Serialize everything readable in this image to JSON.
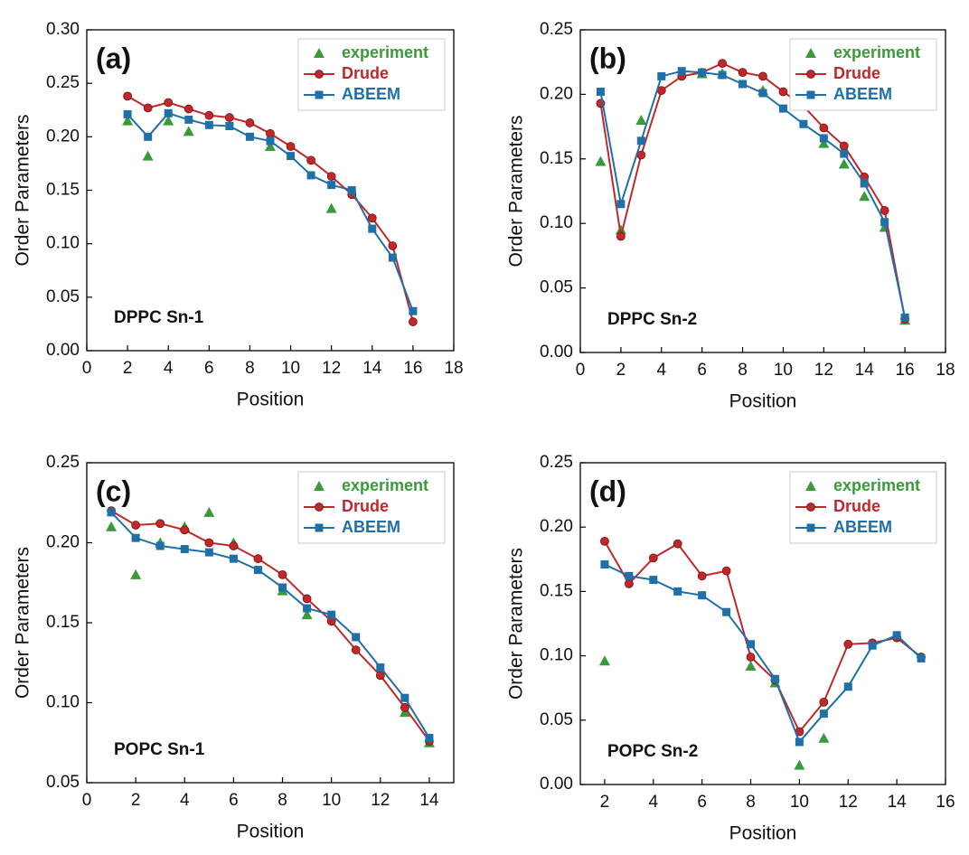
{
  "chart_data": [
    {
      "type": "line",
      "label": "(a)",
      "annotation": "DPPC Sn-1",
      "xlabel": "Position",
      "ylabel": "Order Parameters",
      "xlim": [
        0,
        18
      ],
      "xticks": [
        0,
        2,
        4,
        6,
        8,
        10,
        12,
        14,
        16,
        18
      ],
      "ylim": [
        0,
        0.3
      ],
      "yticks": [
        {
          "value": 0,
          "label": "0.00"
        },
        0.05,
        {
          "value": 0.1,
          "label": "0.10"
        },
        0.15,
        {
          "value": 0.2,
          "label": "0.20"
        },
        0.25,
        {
          "value": 0.3,
          "label": "0.30"
        }
      ],
      "legend": "upper right",
      "series": [
        {
          "name": "experiment",
          "color": "#3a9a3a",
          "marker": "triangle",
          "line": false,
          "x": [
            2,
            3,
            4,
            5,
            9,
            12
          ],
          "values": [
            0.215,
            0.182,
            0.215,
            0.205,
            0.191,
            0.133
          ]
        },
        {
          "name": "Drude",
          "color": "#c0282a",
          "marker": "circle",
          "line": true,
          "x": [
            2,
            3,
            4,
            5,
            6,
            7,
            8,
            9,
            10,
            11,
            12,
            13,
            14,
            15,
            16
          ],
          "values": [
            0.238,
            0.227,
            0.232,
            0.226,
            0.22,
            0.218,
            0.213,
            0.203,
            0.191,
            0.178,
            0.163,
            0.146,
            0.124,
            0.098,
            0.027
          ]
        },
        {
          "name": "ABEEM",
          "color": "#1f6fa8",
          "marker": "square",
          "line": true,
          "x": [
            2,
            3,
            4,
            5,
            6,
            7,
            8,
            9,
            10,
            11,
            12,
            13,
            14,
            15,
            16
          ],
          "values": [
            0.221,
            0.2,
            0.222,
            0.216,
            0.211,
            0.21,
            0.2,
            0.196,
            0.182,
            0.164,
            0.155,
            0.15,
            0.114,
            0.087,
            0.037
          ]
        }
      ]
    },
    {
      "type": "line",
      "label": "(b)",
      "annotation": "DPPC Sn-2",
      "xlabel": "Position",
      "ylabel": "Order Parameters",
      "xlim": [
        0,
        18
      ],
      "xticks": [
        0,
        2,
        4,
        6,
        8,
        10,
        12,
        14,
        16,
        18
      ],
      "ylim": [
        0,
        0.25
      ],
      "yticks": [
        {
          "value": 0,
          "label": "0.00"
        },
        0.05,
        {
          "value": 0.1,
          "label": "0.10"
        },
        0.15,
        {
          "value": 0.2,
          "label": "0.20"
        },
        0.25
      ],
      "legend": "upper right",
      "series": [
        {
          "name": "experiment",
          "color": "#3a9a3a",
          "marker": "triangle",
          "line": false,
          "x": [
            1,
            2,
            3,
            6,
            7,
            9,
            12,
            13,
            14,
            15,
            16
          ],
          "values": [
            0.148,
            0.095,
            0.18,
            0.216,
            0.216,
            0.203,
            0.162,
            0.146,
            0.121,
            0.097,
            0.025
          ]
        },
        {
          "name": "Drude",
          "color": "#c0282a",
          "marker": "circle",
          "line": true,
          "x": [
            1,
            2,
            3,
            4,
            5,
            6,
            7,
            8,
            9,
            10,
            11,
            12,
            13,
            14,
            15,
            16
          ],
          "values": [
            0.193,
            0.09,
            0.153,
            0.203,
            0.214,
            0.217,
            0.224,
            0.217,
            0.214,
            0.202,
            0.191,
            0.174,
            0.16,
            0.136,
            0.11,
            0.026
          ]
        },
        {
          "name": "ABEEM",
          "color": "#1f6fa8",
          "marker": "square",
          "line": true,
          "x": [
            1,
            2,
            3,
            4,
            5,
            6,
            7,
            8,
            9,
            10,
            11,
            12,
            13,
            14,
            15,
            16
          ],
          "values": [
            0.202,
            0.115,
            0.164,
            0.214,
            0.218,
            0.217,
            0.215,
            0.208,
            0.201,
            0.189,
            0.177,
            0.166,
            0.154,
            0.131,
            0.101,
            0.027
          ]
        }
      ]
    },
    {
      "type": "line",
      "label": "(c)",
      "annotation": "POPC Sn-1",
      "xlabel": "Position",
      "ylabel": "Order Parameters",
      "xlim": [
        0,
        15
      ],
      "xticks": [
        0,
        2,
        4,
        6,
        8,
        10,
        12,
        14
      ],
      "ylim": [
        0.05,
        0.25
      ],
      "yticks": [
        0.05,
        {
          "value": 0.1,
          "label": "0.10"
        },
        0.15,
        {
          "value": 0.2,
          "label": "0.20"
        },
        0.25
      ],
      "legend": "upper right",
      "series": [
        {
          "name": "experiment",
          "color": "#3a9a3a",
          "marker": "triangle",
          "line": false,
          "x": [
            1,
            2,
            3,
            4,
            5,
            6,
            8,
            9,
            13,
            14
          ],
          "values": [
            0.21,
            0.18,
            0.2,
            0.21,
            0.219,
            0.2,
            0.17,
            0.155,
            0.094,
            0.075
          ]
        },
        {
          "name": "Drude",
          "color": "#c0282a",
          "marker": "circle",
          "line": true,
          "x": [
            1,
            2,
            3,
            4,
            5,
            6,
            7,
            8,
            9,
            10,
            11,
            12,
            13,
            14
          ],
          "values": [
            0.22,
            0.211,
            0.212,
            0.208,
            0.2,
            0.198,
            0.19,
            0.18,
            0.165,
            0.151,
            0.133,
            0.117,
            0.097,
            0.076
          ]
        },
        {
          "name": "ABEEM",
          "color": "#1f6fa8",
          "marker": "square",
          "line": true,
          "x": [
            1,
            2,
            3,
            4,
            5,
            6,
            7,
            8,
            9,
            10,
            11,
            12,
            13,
            14
          ],
          "values": [
            0.219,
            0.203,
            0.198,
            0.196,
            0.194,
            0.19,
            0.183,
            0.172,
            0.159,
            0.155,
            0.141,
            0.122,
            0.103,
            0.078
          ]
        }
      ]
    },
    {
      "type": "line",
      "label": "(d)",
      "annotation": "POPC Sn-2",
      "xlabel": "Position",
      "ylabel": "Order Parameters",
      "xlim": [
        1,
        16
      ],
      "xticks": [
        2,
        4,
        6,
        8,
        10,
        12,
        14,
        16
      ],
      "ylim": [
        0,
        0.25
      ],
      "yticks": [
        {
          "value": 0,
          "label": "0.00"
        },
        0.05,
        {
          "value": 0.1,
          "label": "0.10"
        },
        0.15,
        {
          "value": 0.2,
          "label": "0.20"
        },
        0.25
      ],
      "legend": "upper right",
      "series": [
        {
          "name": "experiment",
          "color": "#3a9a3a",
          "marker": "triangle",
          "line": false,
          "x": [
            2,
            8,
            9,
            10,
            11
          ],
          "values": [
            0.096,
            0.092,
            0.079,
            0.015,
            0.036
          ]
        },
        {
          "name": "Drude",
          "color": "#c0282a",
          "marker": "circle",
          "line": true,
          "x": [
            2,
            3,
            4,
            5,
            6,
            7,
            8,
            9,
            10,
            11,
            12,
            13,
            14,
            15
          ],
          "values": [
            0.189,
            0.156,
            0.176,
            0.187,
            0.162,
            0.166,
            0.099,
            0.081,
            0.041,
            0.064,
            0.109,
            0.11,
            0.114,
            0.099
          ]
        },
        {
          "name": "ABEEM",
          "color": "#1f6fa8",
          "marker": "square",
          "line": true,
          "x": [
            2,
            3,
            4,
            5,
            6,
            7,
            8,
            9,
            10,
            11,
            12,
            13,
            14,
            15
          ],
          "values": [
            0.171,
            0.162,
            0.159,
            0.15,
            0.147,
            0.134,
            0.109,
            0.082,
            0.033,
            0.055,
            0.076,
            0.108,
            0.116,
            0.098
          ]
        }
      ]
    }
  ]
}
